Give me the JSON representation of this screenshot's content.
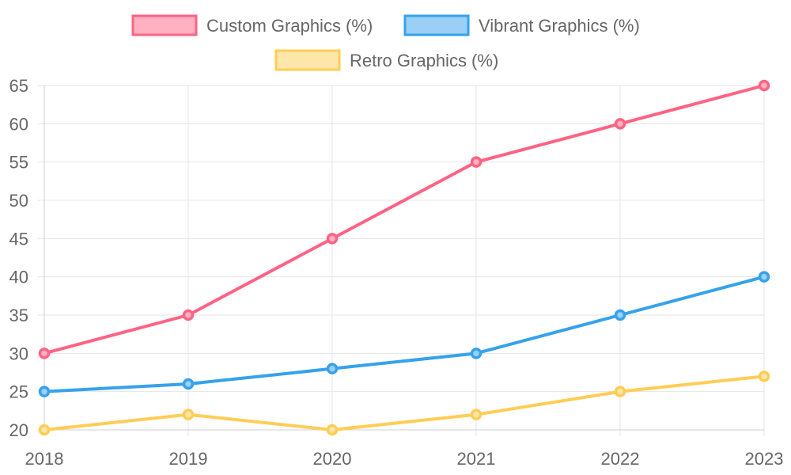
{
  "chart_data": {
    "type": "line",
    "categories": [
      "2018",
      "2019",
      "2020",
      "2021",
      "2022",
      "2023"
    ],
    "series": [
      {
        "name": "Custom Graphics (%)",
        "values": [
          30,
          35,
          45,
          55,
          60,
          65
        ],
        "color": "#ff6384",
        "fill": "#ffb1c1"
      },
      {
        "name": "Vibrant Graphics (%)",
        "values": [
          25,
          26,
          28,
          30,
          35,
          40
        ],
        "color": "#36a2eb",
        "fill": "#9ad0f5"
      },
      {
        "name": "Retro Graphics (%)",
        "values": [
          20,
          22,
          20,
          22,
          25,
          27
        ],
        "color": "#ffcd56",
        "fill": "#ffe6aa"
      }
    ],
    "ylim": [
      20,
      65
    ],
    "yticks": [
      20,
      25,
      30,
      35,
      40,
      45,
      50,
      55,
      60,
      65
    ],
    "grid": true,
    "legend_position": "top",
    "title": "",
    "xlabel": "",
    "ylabel": ""
  }
}
